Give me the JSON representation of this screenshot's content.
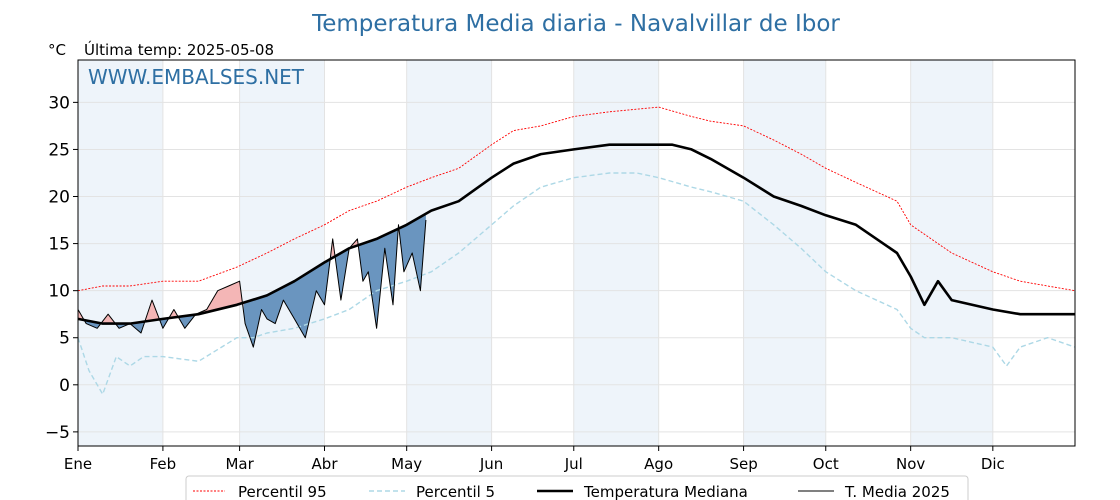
{
  "chart_data": {
    "type": "line",
    "title": "Temperatura Media diaria - Navalvillar de Ibor",
    "unit_label": "°C",
    "last_temp_label": "Última temp: 2025-05-08",
    "watermark": "WWW.EMBALSES.NET",
    "months": [
      "Ene",
      "Feb",
      "Mar",
      "Abr",
      "May",
      "Jun",
      "Jul",
      "Ago",
      "Sep",
      "Oct",
      "Nov",
      "Dic"
    ],
    "ylim": [
      -6.5,
      34.5
    ],
    "yticks": [
      -5,
      0,
      5,
      10,
      15,
      20,
      25,
      30
    ],
    "grid": true,
    "legend_position": "bottom",
    "colors": {
      "p95": "#ff0000",
      "p5": "#add8e6",
      "median": "#000000",
      "current": "#000000",
      "above_fill": "#f4b6b6",
      "below_fill": "#6a95bf",
      "month_band": "#eef4fa",
      "title": "#2e6fa3",
      "watermark": "#2e6fa3"
    },
    "series": [
      {
        "key": "p95",
        "name": "Percentil 95",
        "x": [
          1,
          10,
          20,
          32,
          45,
          59,
          70,
          80,
          91,
          100,
          110,
          121,
          130,
          140,
          152,
          160,
          170,
          182,
          195,
          213,
          225,
          232,
          244,
          255,
          265,
          274,
          285,
          300,
          305,
          315,
          320,
          335,
          345,
          355,
          365
        ],
        "y": [
          10,
          10.5,
          10.5,
          11,
          11,
          12.5,
          14,
          15.5,
          17,
          18.5,
          19.5,
          21,
          22,
          23,
          25.5,
          27,
          27.5,
          28.5,
          29,
          29.5,
          28.5,
          28,
          27.5,
          26,
          24.5,
          23,
          21.5,
          19.5,
          17,
          15,
          14,
          12,
          11,
          10.5,
          10
        ]
      },
      {
        "key": "p5",
        "name": "Percentil 5",
        "x": [
          1,
          5,
          10,
          15,
          20,
          25,
          32,
          45,
          59,
          65,
          70,
          80,
          91,
          100,
          110,
          121,
          130,
          140,
          152,
          160,
          170,
          182,
          195,
          205,
          213,
          225,
          232,
          244,
          255,
          265,
          274,
          285,
          300,
          305,
          310,
          320,
          335,
          340,
          345,
          355,
          365
        ],
        "y": [
          5,
          1.5,
          -1,
          3,
          2,
          3,
          3,
          2.5,
          5,
          5,
          5.5,
          6,
          7,
          8,
          10,
          11,
          12,
          14,
          17,
          19,
          21,
          22,
          22.5,
          22.5,
          22,
          21,
          20.5,
          19.5,
          17,
          14.5,
          12,
          10,
          8,
          6,
          5,
          5,
          4,
          2,
          4,
          5,
          4
        ]
      },
      {
        "key": "median",
        "name": "Temperatura Mediana",
        "x": [
          1,
          10,
          20,
          32,
          45,
          59,
          70,
          80,
          91,
          100,
          110,
          121,
          130,
          140,
          152,
          160,
          170,
          182,
          195,
          205,
          213,
          218,
          225,
          232,
          244,
          255,
          265,
          274,
          285,
          300,
          305,
          310,
          315,
          320,
          335,
          345,
          355,
          365
        ],
        "y": [
          7,
          6.5,
          6.5,
          7,
          7.5,
          8.5,
          9.5,
          11,
          13,
          14.5,
          15.5,
          17,
          18.5,
          19.5,
          22,
          23.5,
          24.5,
          25,
          25.5,
          25.5,
          25.5,
          25.5,
          25,
          24,
          22,
          20,
          19,
          18,
          17,
          14,
          11.5,
          8.5,
          11,
          9,
          8,
          7.5,
          7.5,
          7.5
        ]
      },
      {
        "key": "current",
        "name": "T. Media 2025",
        "x": [
          1,
          4,
          8,
          12,
          16,
          20,
          24,
          28,
          32,
          36,
          40,
          44,
          48,
          52,
          56,
          60,
          62,
          65,
          68,
          70,
          73,
          76,
          80,
          84,
          88,
          91,
          94,
          97,
          100,
          103,
          105,
          107,
          110,
          113,
          116,
          118,
          120,
          123,
          126,
          128
        ],
        "y": [
          8,
          6.5,
          6,
          7.5,
          6,
          6.5,
          5.5,
          9,
          6,
          8,
          6,
          7.5,
          8,
          10,
          10.5,
          11,
          6.5,
          4,
          8,
          7,
          6.5,
          9,
          7,
          5,
          10,
          8.5,
          15.5,
          9,
          14.5,
          15.5,
          11,
          12,
          6,
          14.5,
          8.5,
          17,
          12,
          14,
          10,
          17.5
        ]
      }
    ],
    "legend": [
      "Percentil 95",
      "Percentil 5",
      "Temperatura Mediana",
      "T. Media 2025"
    ]
  }
}
